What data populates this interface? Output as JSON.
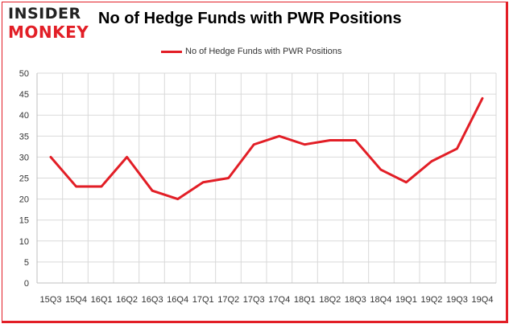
{
  "logo": {
    "line1": "INSIDER",
    "line2": "MONKEY"
  },
  "chart_data": {
    "type": "line",
    "title": "No of Hedge Funds with PWR Positions",
    "xlabel": "",
    "ylabel": "",
    "categories": [
      "15Q3",
      "15Q4",
      "16Q1",
      "16Q2",
      "16Q3",
      "16Q4",
      "17Q1",
      "17Q2",
      "17Q3",
      "17Q4",
      "18Q1",
      "18Q2",
      "18Q3",
      "18Q4",
      "19Q1",
      "19Q2",
      "19Q3",
      "19Q4"
    ],
    "series": [
      {
        "name": "No of Hedge Funds with PWR Positions",
        "values": [
          30,
          23,
          23,
          30,
          22,
          20,
          24,
          25,
          33,
          35,
          33,
          34,
          34,
          27,
          24,
          29,
          32,
          44
        ]
      }
    ],
    "ylim": [
      0,
      50
    ],
    "yticks": [
      0,
      5,
      10,
      15,
      20,
      25,
      30,
      35,
      40,
      45,
      50
    ],
    "grid": true,
    "legend": "top-center",
    "color": "#e21e26"
  }
}
